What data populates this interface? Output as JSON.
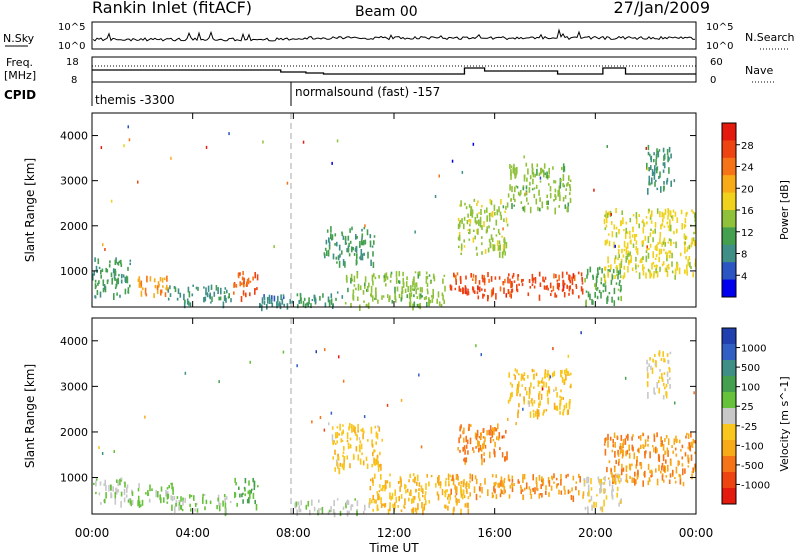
{
  "header": {
    "title": "Rankin Inlet (fitACF)",
    "beam": "Beam 00",
    "date": "27/Jan/2009"
  },
  "noise_panel": {
    "left_label": "N.Sky",
    "left_ticks": [
      "10^5",
      "10^0"
    ],
    "right_label": "N.Search",
    "right_ticks": [
      "10^5",
      "10^0"
    ]
  },
  "freq_panel": {
    "left_label_line1": "Freq.",
    "left_label_line2": "[MHz]",
    "left_ticks": [
      "18",
      "8"
    ],
    "right_label": "Nave",
    "right_ticks": [
      "60",
      "0"
    ]
  },
  "cpid_panel": {
    "label": "CPID",
    "programs": [
      {
        "text": "themis -3300",
        "start_hour": 0
      },
      {
        "text": "normalsound (fast) -157",
        "start_hour": 8
      }
    ]
  },
  "x_axis": {
    "label": "Time UT",
    "ticks": [
      "00:00",
      "04:00",
      "08:00",
      "12:00",
      "16:00",
      "20:00",
      "00:00"
    ]
  },
  "chart_data": [
    {
      "type": "heatmap",
      "name": "power",
      "ylabel": "Slant Range [km]",
      "xlabel": "Time UT",
      "xlim": [
        0,
        24
      ],
      "ylim": [
        200,
        4500
      ],
      "y_ticks": [
        1000,
        2000,
        3000,
        4000
      ],
      "colorbar": {
        "label": "Power [dB]",
        "range": [
          0,
          32
        ],
        "ticks": [
          "4",
          "8",
          "12",
          "16",
          "20",
          "24",
          "28"
        ],
        "colors": [
          "#0000ee",
          "#2a55c2",
          "#3f8f86",
          "#44a04e",
          "#8fc23a",
          "#f0d21c",
          "#f8ab19",
          "#f67317",
          "#ee4412",
          "#e41a0f"
        ]
      },
      "echo_regions": [
        {
          "t0": 0.0,
          "t1": 1.5,
          "r0": 450,
          "r1": 1300,
          "value": 10
        },
        {
          "t0": 1.8,
          "t1": 3.0,
          "r0": 500,
          "r1": 900,
          "value": 22
        },
        {
          "t0": 3.0,
          "t1": 5.5,
          "r0": 300,
          "r1": 700,
          "value": 9
        },
        {
          "t0": 5.6,
          "t1": 6.6,
          "r0": 400,
          "r1": 1000,
          "value": 25
        },
        {
          "t0": 6.6,
          "t1": 8.0,
          "r0": 250,
          "r1": 500,
          "value": 8
        },
        {
          "t0": 8.0,
          "t1": 10.0,
          "r0": 250,
          "r1": 550,
          "value": 10
        },
        {
          "t0": 9.2,
          "t1": 11.2,
          "r0": 1200,
          "r1": 2000,
          "value": 10
        },
        {
          "t0": 10.0,
          "t1": 14.0,
          "r0": 250,
          "r1": 1000,
          "value": 14
        },
        {
          "t0": 14.2,
          "t1": 19.5,
          "r0": 450,
          "r1": 1000,
          "value": 27
        },
        {
          "t0": 14.5,
          "t1": 16.5,
          "r0": 1400,
          "r1": 2600,
          "value": 15
        },
        {
          "t0": 16.5,
          "t1": 19.0,
          "r0": 2400,
          "r1": 3400,
          "value": 14
        },
        {
          "t0": 19.5,
          "t1": 21.0,
          "r0": 300,
          "r1": 1100,
          "value": 12
        },
        {
          "t0": 20.3,
          "t1": 24.0,
          "r0": 900,
          "r1": 2400,
          "value": 17
        },
        {
          "t0": 22.0,
          "t1": 23.0,
          "r0": 2800,
          "r1": 3800,
          "value": 9
        }
      ]
    },
    {
      "type": "heatmap",
      "name": "velocity",
      "ylabel": "Slant Range [km]",
      "xlabel": "Time UT",
      "xlim": [
        0,
        24
      ],
      "ylim": [
        200,
        4500
      ],
      "y_ticks": [
        1000,
        2000,
        3000,
        4000
      ],
      "colorbar": {
        "label": "Velocity [m s^-1]",
        "range": [
          -1200,
          1200
        ],
        "ticks": [
          "1000",
          "500",
          "100",
          "25",
          "-25",
          "-100",
          "-500",
          "-1000"
        ],
        "colors": [
          "#2040b0",
          "#3060c4",
          "#3f8f86",
          "#44a04e",
          "#66c23a",
          "#c8c8c8",
          "#f8c61c",
          "#f8ab19",
          "#f67317",
          "#ee4412",
          "#e41a0f"
        ]
      },
      "echo_regions": [
        {
          "t0": 0.0,
          "t1": 1.6,
          "r0": 450,
          "r1": 1000,
          "value": 80
        },
        {
          "t0": 1.8,
          "t1": 3.2,
          "r0": 400,
          "r1": 900,
          "value": 150
        },
        {
          "t0": 3.0,
          "t1": 5.5,
          "r0": 300,
          "r1": 650,
          "value": 100
        },
        {
          "t0": 5.6,
          "t1": 6.6,
          "r0": 400,
          "r1": 1000,
          "value": 300
        },
        {
          "t0": 8.0,
          "t1": 11.0,
          "r0": 250,
          "r1": 550,
          "value": 40
        },
        {
          "t0": 9.5,
          "t1": 11.5,
          "r0": 1200,
          "r1": 2200,
          "value": -250
        },
        {
          "t0": 11.0,
          "t1": 15.0,
          "r0": 300,
          "r1": 1100,
          "value": -300
        },
        {
          "t0": 14.2,
          "t1": 19.5,
          "r0": 600,
          "r1": 1100,
          "value": -500
        },
        {
          "t0": 14.5,
          "t1": 16.5,
          "r0": 1400,
          "r1": 2200,
          "value": -600
        },
        {
          "t0": 16.5,
          "t1": 19.0,
          "r0": 2400,
          "r1": 3400,
          "value": -250
        },
        {
          "t0": 19.5,
          "t1": 21.0,
          "r0": 300,
          "r1": 1100,
          "value": -100
        },
        {
          "t0": 20.3,
          "t1": 24.0,
          "r0": 900,
          "r1": 2000,
          "value": -500
        },
        {
          "t0": 22.0,
          "t1": 23.0,
          "r0": 2800,
          "r1": 3800,
          "value": -120
        }
      ]
    }
  ]
}
